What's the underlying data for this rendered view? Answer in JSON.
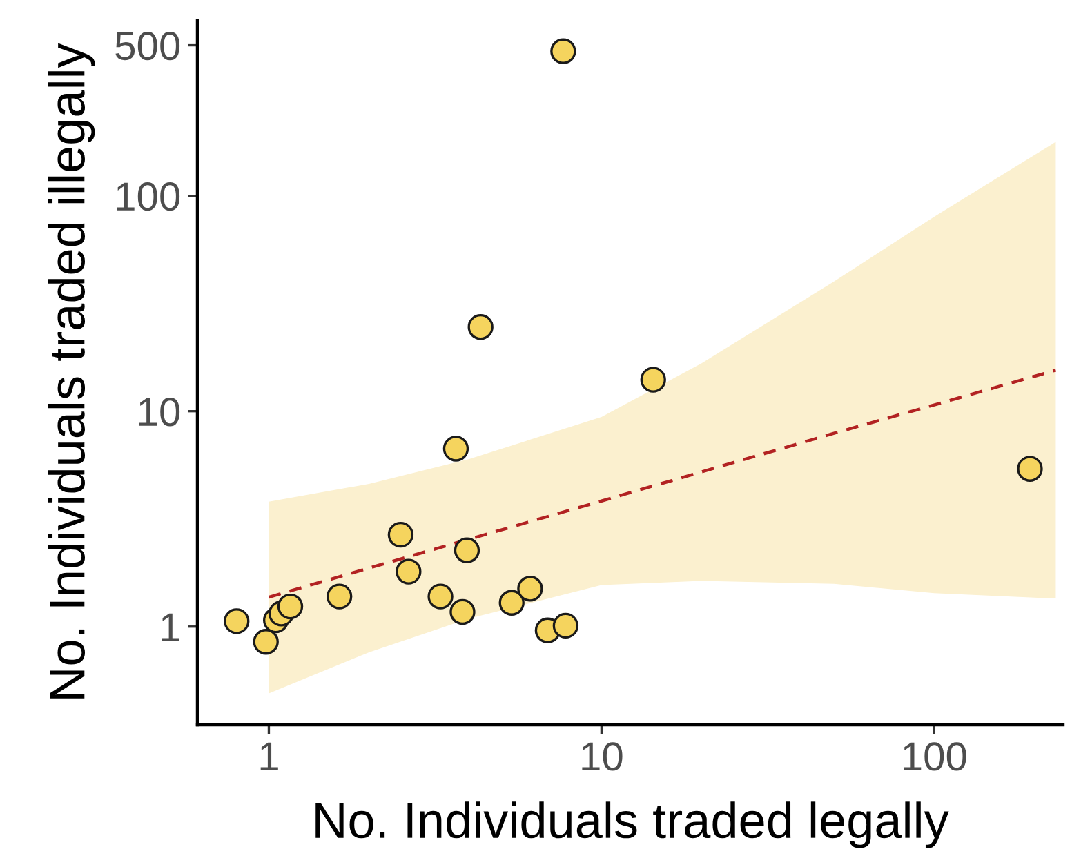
{
  "chart_data": {
    "type": "scatter",
    "xlabel": "No. Individuals traded legally",
    "ylabel": "No. Individuals traded illegally",
    "log": "xy",
    "grid": false,
    "xlim": [
      0.61,
      244
    ],
    "ylim": [
      0.35,
      650
    ],
    "xticks": [
      1,
      10,
      100
    ],
    "yticks": [
      1,
      10,
      100,
      500
    ],
    "series": [
      {
        "color": "#f5d45e",
        "marker": "circle",
        "x": [
          0.8,
          0.98,
          1.05,
          1.09,
          1.16,
          1.63,
          2.49,
          2.63,
          3.28,
          3.82,
          3.94,
          5.37,
          6.1,
          6.89,
          7.8,
          3.65,
          4.33,
          7.67,
          14.3,
          194
        ],
        "values": [
          1.06,
          0.85,
          1.07,
          1.15,
          1.24,
          1.38,
          2.67,
          1.8,
          1.38,
          1.17,
          2.26,
          1.29,
          1.5,
          0.96,
          1.01,
          6.7,
          24.6,
          469,
          14.0,
          5.4
        ]
      },
      {
        "type": "line",
        "color": "#b22222",
        "line_style": "dashed",
        "x": [
          1,
          2,
          4,
          10,
          20,
          50,
          100,
          232
        ],
        "values": [
          1.37,
          1.87,
          null,
          3.83,
          5.23,
          7.9,
          10.7,
          15.5
        ],
        "lower": [
          0.49,
          0.76,
          1.09,
          1.56,
          1.63,
          1.58,
          1.43,
          1.35
        ],
        "upper": [
          3.8,
          4.6,
          6.0,
          9.4,
          16.7,
          40,
          80,
          178
        ]
      }
    ]
  }
}
